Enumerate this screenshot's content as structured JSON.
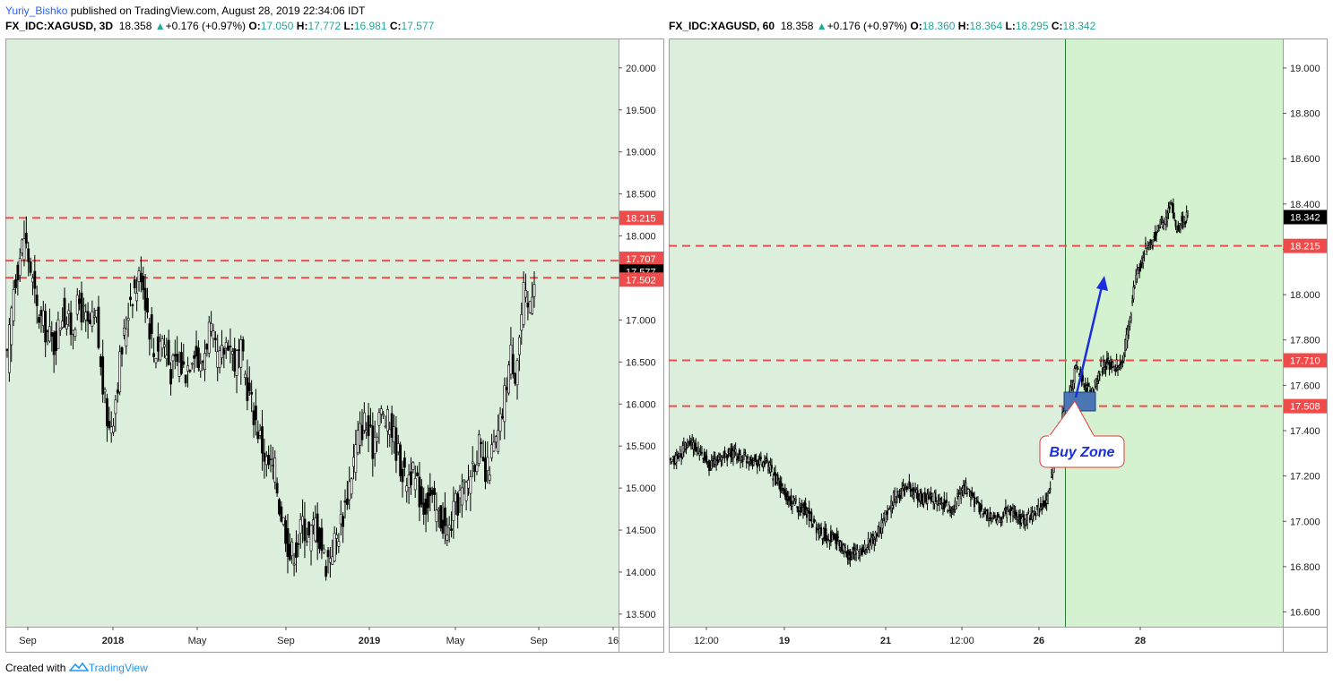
{
  "publish_line": {
    "user": "Yuriy_Bishko",
    "rest": " published on TradingView.com, August 28, 2019 22:34:06 IDT"
  },
  "footer": {
    "prefix": "Created with",
    "brand": "TradingView"
  },
  "colors": {
    "bg_green": "#dcefdc",
    "bg_green_bright": "#d4f2d0",
    "level_line": "#f04b4b",
    "price_tag_red": "#f04b4b",
    "price_tag_black": "#000000",
    "arrow_blue": "#1a2ee0",
    "buy_zone_fill": "#4a76b4",
    "vline_green": "#2e7d32",
    "up_text": "#26a69a"
  },
  "chart_data": [
    {
      "type": "candlestick",
      "symbol": "FX_IDC:XAGUSD",
      "interval": "3D",
      "header": {
        "symbol_interval": "FX_IDC:XAGUSD, 3D",
        "last": "18.358",
        "change": "+0.176 (+0.97%)",
        "open_label": "O:",
        "open": "17.050",
        "high_label": "H:",
        "high": "17.772",
        "low_label": "L:",
        "low": "16.981",
        "close_label": "C:",
        "close": "17.577"
      },
      "ylim": [
        13.35,
        20.35
      ],
      "y_ticks": [
        "13.500",
        "14.000",
        "14.500",
        "15.000",
        "15.500",
        "16.000",
        "16.500",
        "17.000",
        "17.500",
        "18.000",
        "18.500",
        "19.000",
        "19.500",
        "20.000"
      ],
      "x_ticks": [
        "Sep",
        "2018",
        "May",
        "Sep",
        "2019",
        "May",
        "Sep",
        "16"
      ],
      "horizontal_levels": [
        18.215,
        17.707,
        17.502
      ],
      "price_tags": [
        {
          "label": "18.215",
          "value": 18.215,
          "style": "red"
        },
        {
          "label": "17.707",
          "value": 17.707,
          "style": "red"
        },
        {
          "label": "17.577",
          "value": 17.577,
          "style": "black"
        },
        {
          "label": "17.502",
          "value": 17.502,
          "style": "red"
        }
      ],
      "path_anchors": [
        [
          0,
          16.5
        ],
        [
          3,
          17.4
        ],
        [
          8,
          18.0
        ],
        [
          11,
          17.6
        ],
        [
          14,
          17.1
        ],
        [
          18,
          16.9
        ],
        [
          22,
          16.7
        ],
        [
          26,
          17.1
        ],
        [
          30,
          16.9
        ],
        [
          34,
          17.2
        ],
        [
          38,
          16.9
        ],
        [
          42,
          17.0
        ],
        [
          44,
          16.4
        ],
        [
          46,
          16.0
        ],
        [
          48,
          15.7
        ],
        [
          50,
          15.9
        ],
        [
          53,
          16.5
        ],
        [
          55,
          16.8
        ],
        [
          58,
          17.3
        ],
        [
          61,
          17.4
        ],
        [
          63,
          17.6
        ],
        [
          66,
          17.1
        ],
        [
          69,
          16.6
        ],
        [
          73,
          16.8
        ],
        [
          77,
          16.4
        ],
        [
          80,
          16.5
        ],
        [
          84,
          16.4
        ],
        [
          88,
          16.7
        ],
        [
          91,
          16.4
        ],
        [
          95,
          16.9
        ],
        [
          98,
          16.6
        ],
        [
          100,
          16.5
        ],
        [
          104,
          16.8
        ],
        [
          107,
          16.5
        ],
        [
          110,
          16.6
        ],
        [
          113,
          16.2
        ],
        [
          116,
          15.9
        ],
        [
          119,
          15.6
        ],
        [
          122,
          15.3
        ],
        [
          126,
          15.2
        ],
        [
          128,
          14.8
        ],
        [
          131,
          14.5
        ],
        [
          133,
          14.2
        ],
        [
          136,
          14.3
        ],
        [
          139,
          14.6
        ],
        [
          142,
          14.4
        ],
        [
          145,
          14.6
        ],
        [
          148,
          14.3
        ],
        [
          150,
          14.1
        ],
        [
          153,
          14.3
        ],
        [
          156,
          14.5
        ],
        [
          159,
          14.8
        ],
        [
          162,
          15.2
        ],
        [
          165,
          15.6
        ],
        [
          168,
          15.8
        ],
        [
          172,
          15.5
        ],
        [
          175,
          15.9
        ],
        [
          178,
          15.8
        ],
        [
          181,
          15.7
        ],
        [
          184,
          15.4
        ],
        [
          187,
          15.1
        ],
        [
          190,
          15.2
        ],
        [
          193,
          15.0
        ],
        [
          196,
          14.8
        ],
        [
          199,
          14.9
        ],
        [
          202,
          14.7
        ],
        [
          205,
          14.6
        ],
        [
          207,
          14.4
        ],
        [
          210,
          14.7
        ],
        [
          213,
          14.9
        ],
        [
          216,
          15.0
        ],
        [
          219,
          15.3
        ],
        [
          222,
          15.5
        ],
        [
          225,
          15.1
        ],
        [
          228,
          15.4
        ],
        [
          231,
          15.6
        ],
        [
          233,
          15.9
        ],
        [
          235,
          16.3
        ],
        [
          237,
          16.6
        ],
        [
          239,
          16.4
        ],
        [
          241,
          16.8
        ],
        [
          243,
          17.3
        ],
        [
          245,
          17.1
        ],
        [
          247,
          17.4
        ],
        [
          248,
          17.577
        ]
      ]
    },
    {
      "type": "candlestick",
      "symbol": "FX_IDC:XAGUSD",
      "interval": "60",
      "header": {
        "symbol_interval": "FX_IDC:XAGUSD, 60",
        "last": "18.358",
        "change": "+0.176 (+0.97%)",
        "open_label": "O:",
        "open": "18.360",
        "high_label": "H:",
        "high": "18.364",
        "low_label": "L:",
        "low": "18.295",
        "close_label": "C:",
        "close": "18.342"
      },
      "ylim": [
        16.535,
        19.13
      ],
      "y_ticks": [
        "16.600",
        "16.800",
        "17.000",
        "17.200",
        "17.400",
        "17.600",
        "17.800",
        "18.000",
        "18.200",
        "18.400",
        "18.600",
        "18.800",
        "19.000"
      ],
      "x_ticks": [
        "12:00",
        "19",
        "21",
        "12:00",
        "26",
        "28"
      ],
      "horizontal_levels": [
        18.215,
        17.71,
        17.508
      ],
      "price_tags": [
        {
          "label": "18.342",
          "value": 18.342,
          "style": "black"
        },
        {
          "label": "18.215",
          "value": 18.215,
          "style": "red"
        },
        {
          "label": "17.710",
          "value": 17.71,
          "style": "red"
        },
        {
          "label": "17.508",
          "value": 17.508,
          "style": "red"
        }
      ],
      "annotations": [
        {
          "text": "Buy Zone"
        }
      ],
      "path_anchors": [
        [
          0,
          17.25
        ],
        [
          8,
          17.35
        ],
        [
          16,
          17.25
        ],
        [
          24,
          17.3
        ],
        [
          32,
          17.28
        ],
        [
          40,
          17.25
        ],
        [
          48,
          17.1
        ],
        [
          56,
          17.05
        ],
        [
          62,
          16.95
        ],
        [
          68,
          16.92
        ],
        [
          74,
          16.85
        ],
        [
          80,
          16.88
        ],
        [
          86,
          16.95
        ],
        [
          92,
          17.1
        ],
        [
          98,
          17.15
        ],
        [
          104,
          17.1
        ],
        [
          110,
          17.1
        ],
        [
          116,
          17.05
        ],
        [
          122,
          17.15
        ],
        [
          128,
          17.05
        ],
        [
          134,
          17.0
        ],
        [
          140,
          17.05
        ],
        [
          146,
          17.0
        ],
        [
          152,
          17.05
        ],
        [
          156,
          17.1
        ],
        [
          160,
          17.35
        ],
        [
          162,
          17.45
        ],
        [
          164,
          17.48
        ],
        [
          166,
          17.6
        ],
        [
          168,
          17.7
        ],
        [
          170,
          17.62
        ],
        [
          172,
          17.6
        ],
        [
          174,
          17.55
        ],
        [
          176,
          17.62
        ],
        [
          178,
          17.68
        ],
        [
          181,
          17.7
        ],
        [
          184,
          17.68
        ],
        [
          187,
          17.72
        ],
        [
          190,
          17.9
        ],
        [
          192,
          18.05
        ],
        [
          194,
          18.12
        ],
        [
          196,
          18.2
        ],
        [
          199,
          18.22
        ],
        [
          202,
          18.3
        ],
        [
          205,
          18.33
        ],
        [
          207,
          18.4
        ],
        [
          209,
          18.3
        ],
        [
          211,
          18.32
        ],
        [
          214,
          18.342
        ]
      ]
    }
  ]
}
